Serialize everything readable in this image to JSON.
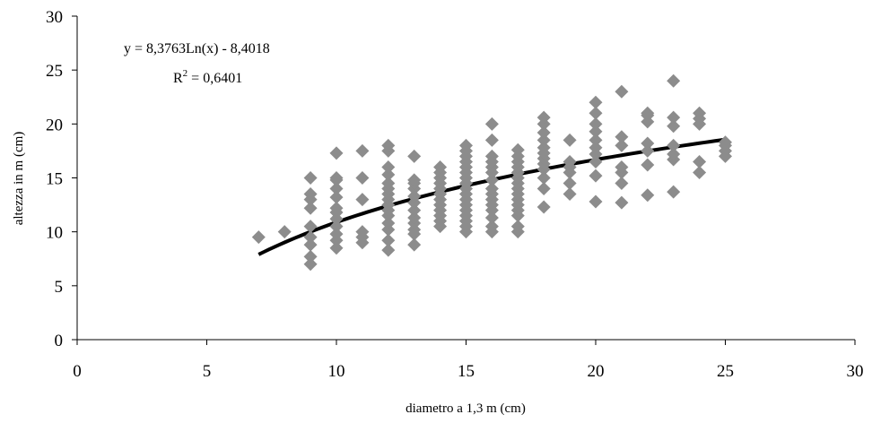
{
  "chart_data": {
    "type": "scatter",
    "xlabel": "diametro a 1,3 m (cm)",
    "ylabel": "altezza in m (cm)",
    "xlim": [
      0,
      30
    ],
    "ylim": [
      0,
      30
    ],
    "x_ticks": [
      0,
      5,
      10,
      15,
      20,
      25,
      30
    ],
    "y_ticks": [
      0,
      5,
      10,
      15,
      20,
      25,
      30
    ],
    "grid": false,
    "legend": "none",
    "marker_color": "#8c8c8c",
    "trendline_color": "#000000",
    "annotations": {
      "equation": "y = 8,3763Ln(x) - 8,4018",
      "r2_prefix": "R",
      "r2_sup": "2",
      "r2_value": " = 0,6401"
    },
    "trendline": {
      "type": "logarithmic",
      "a": 8.3763,
      "b": -8.4018,
      "x_range": [
        7,
        25
      ]
    },
    "series": [
      {
        "marker": "diamond",
        "points": [
          [
            7,
            9.5
          ],
          [
            8,
            10
          ],
          [
            9,
            7
          ],
          [
            9,
            7.7
          ],
          [
            9,
            8.8
          ],
          [
            9,
            9.5
          ],
          [
            9,
            10.5
          ],
          [
            9,
            12.2
          ],
          [
            9,
            13
          ],
          [
            9,
            13.5
          ],
          [
            9,
            15
          ],
          [
            10,
            8.5
          ],
          [
            10,
            9.2
          ],
          [
            10,
            9.8
          ],
          [
            10,
            10.5
          ],
          [
            10,
            11.2
          ],
          [
            10,
            11.8
          ],
          [
            10,
            12.2
          ],
          [
            10,
            13.2
          ],
          [
            10,
            14
          ],
          [
            10,
            14.8
          ],
          [
            10,
            15
          ],
          [
            10,
            17.3
          ],
          [
            11,
            9
          ],
          [
            11,
            9.5
          ],
          [
            11,
            10
          ],
          [
            11,
            13
          ],
          [
            11,
            15
          ],
          [
            11,
            17.5
          ],
          [
            12,
            8.3
          ],
          [
            12,
            9.2
          ],
          [
            12,
            10.2
          ],
          [
            12,
            10.8
          ],
          [
            12,
            11.5
          ],
          [
            12,
            12
          ],
          [
            12,
            12.5
          ],
          [
            12,
            13
          ],
          [
            12,
            13.5
          ],
          [
            12,
            14
          ],
          [
            12,
            14.5
          ],
          [
            12,
            15.3
          ],
          [
            12,
            16
          ],
          [
            12,
            17.5
          ],
          [
            12,
            18
          ],
          [
            13,
            8.8
          ],
          [
            13,
            9.8
          ],
          [
            13,
            10.2
          ],
          [
            13,
            10.8
          ],
          [
            13,
            11.3
          ],
          [
            13,
            12
          ],
          [
            13,
            12.7
          ],
          [
            13,
            13.3
          ],
          [
            13,
            14
          ],
          [
            13,
            14.5
          ],
          [
            13,
            14.8
          ],
          [
            13,
            17
          ],
          [
            14,
            10.5
          ],
          [
            14,
            11
          ],
          [
            14,
            11.5
          ],
          [
            14,
            12
          ],
          [
            14,
            12.5
          ],
          [
            14,
            13
          ],
          [
            14,
            13.5
          ],
          [
            14,
            14
          ],
          [
            14,
            14.5
          ],
          [
            14,
            15
          ],
          [
            14,
            15.5
          ],
          [
            14,
            16
          ],
          [
            15,
            10
          ],
          [
            15,
            10.5
          ],
          [
            15,
            11
          ],
          [
            15,
            11.5
          ],
          [
            15,
            12
          ],
          [
            15,
            12.5
          ],
          [
            15,
            13
          ],
          [
            15,
            13.5
          ],
          [
            15,
            14
          ],
          [
            15,
            14.5
          ],
          [
            15,
            15
          ],
          [
            15,
            15.5
          ],
          [
            15,
            16
          ],
          [
            15,
            16.5
          ],
          [
            15,
            17
          ],
          [
            15,
            17.5
          ],
          [
            15,
            18
          ],
          [
            16,
            10
          ],
          [
            16,
            10.5
          ],
          [
            16,
            11.3
          ],
          [
            16,
            12
          ],
          [
            16,
            12.5
          ],
          [
            16,
            13
          ],
          [
            16,
            13.5
          ],
          [
            16,
            14
          ],
          [
            16,
            14.8
          ],
          [
            16,
            15.5
          ],
          [
            16,
            16
          ],
          [
            16,
            16.5
          ],
          [
            16,
            17
          ],
          [
            16,
            18.5
          ],
          [
            16,
            20
          ],
          [
            17,
            10
          ],
          [
            17,
            10.5
          ],
          [
            17,
            11.5
          ],
          [
            17,
            12
          ],
          [
            17,
            12.5
          ],
          [
            17,
            13
          ],
          [
            17,
            13.5
          ],
          [
            17,
            14
          ],
          [
            17,
            14.5
          ],
          [
            17,
            15
          ],
          [
            17,
            15.5
          ],
          [
            17,
            16
          ],
          [
            17,
            16.5
          ],
          [
            17,
            17
          ],
          [
            17,
            17.6
          ],
          [
            18,
            12.3
          ],
          [
            18,
            14
          ],
          [
            18,
            15
          ],
          [
            18,
            15.8
          ],
          [
            18,
            16.3
          ],
          [
            18,
            16.8
          ],
          [
            18,
            17.3
          ],
          [
            18,
            17.8
          ],
          [
            18,
            18.5
          ],
          [
            18,
            19.2
          ],
          [
            18,
            20
          ],
          [
            18,
            20.6
          ],
          [
            19,
            13.5
          ],
          [
            19,
            14.5
          ],
          [
            19,
            15.5
          ],
          [
            19,
            16
          ],
          [
            19,
            16.5
          ],
          [
            19,
            18.5
          ],
          [
            20,
            12.8
          ],
          [
            20,
            15.2
          ],
          [
            20,
            16.5
          ],
          [
            20,
            17.2
          ],
          [
            20,
            17.8
          ],
          [
            20,
            18.5
          ],
          [
            20,
            19.3
          ],
          [
            20,
            20
          ],
          [
            20,
            21
          ],
          [
            20,
            22
          ],
          [
            21,
            12.7
          ],
          [
            21,
            14.5
          ],
          [
            21,
            15.5
          ],
          [
            21,
            16
          ],
          [
            21,
            18
          ],
          [
            21,
            18.8
          ],
          [
            21,
            23
          ],
          [
            22,
            13.4
          ],
          [
            22,
            16.2
          ],
          [
            22,
            17.5
          ],
          [
            22,
            18.2
          ],
          [
            22,
            20.2
          ],
          [
            22,
            20.8
          ],
          [
            22,
            21
          ],
          [
            23,
            13.7
          ],
          [
            23,
            16.7
          ],
          [
            23,
            17.2
          ],
          [
            23,
            18
          ],
          [
            23,
            19.8
          ],
          [
            23,
            20.6
          ],
          [
            23,
            24
          ],
          [
            24,
            15.5
          ],
          [
            24,
            16.5
          ],
          [
            24,
            20
          ],
          [
            24,
            20.5
          ],
          [
            24,
            21
          ],
          [
            25,
            17
          ],
          [
            25,
            17.5
          ],
          [
            25,
            18
          ],
          [
            25,
            18.3
          ]
        ]
      }
    ]
  }
}
